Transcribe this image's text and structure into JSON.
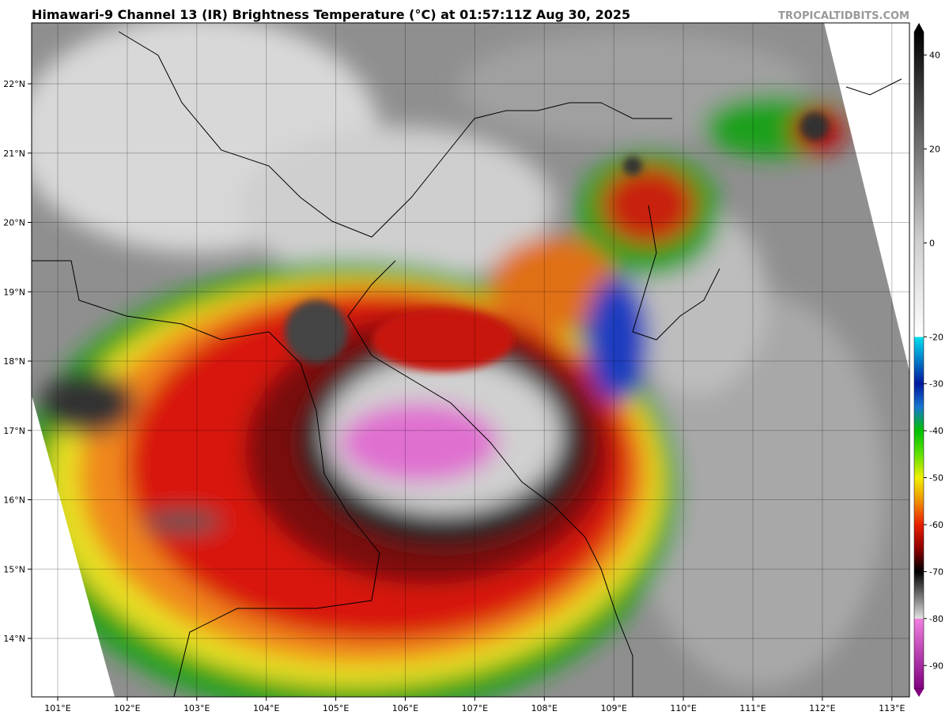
{
  "header": {
    "title": "Himawari-9 Channel 13 (IR) Brightness Temperature (°C) at 01:57:11Z Aug 30, 2025",
    "source": "TROPICALTIDBITS.COM"
  },
  "map": {
    "lat_labels": [
      "22°N",
      "21°N",
      "20°N",
      "19°N",
      "18°N",
      "17°N",
      "16°N",
      "15°N",
      "14°N"
    ],
    "lon_labels": [
      "101°E",
      "102°E",
      "103°E",
      "104°E",
      "105°E",
      "106°E",
      "107°E",
      "108°E",
      "109°E",
      "110°E",
      "111°E",
      "112°E",
      "113°E"
    ]
  },
  "colorbar": {
    "lim": [
      -95,
      45
    ],
    "ticks": [
      40,
      20,
      0,
      -20,
      -30,
      -40,
      -50,
      -60,
      -70,
      -80,
      -90
    ]
  }
}
